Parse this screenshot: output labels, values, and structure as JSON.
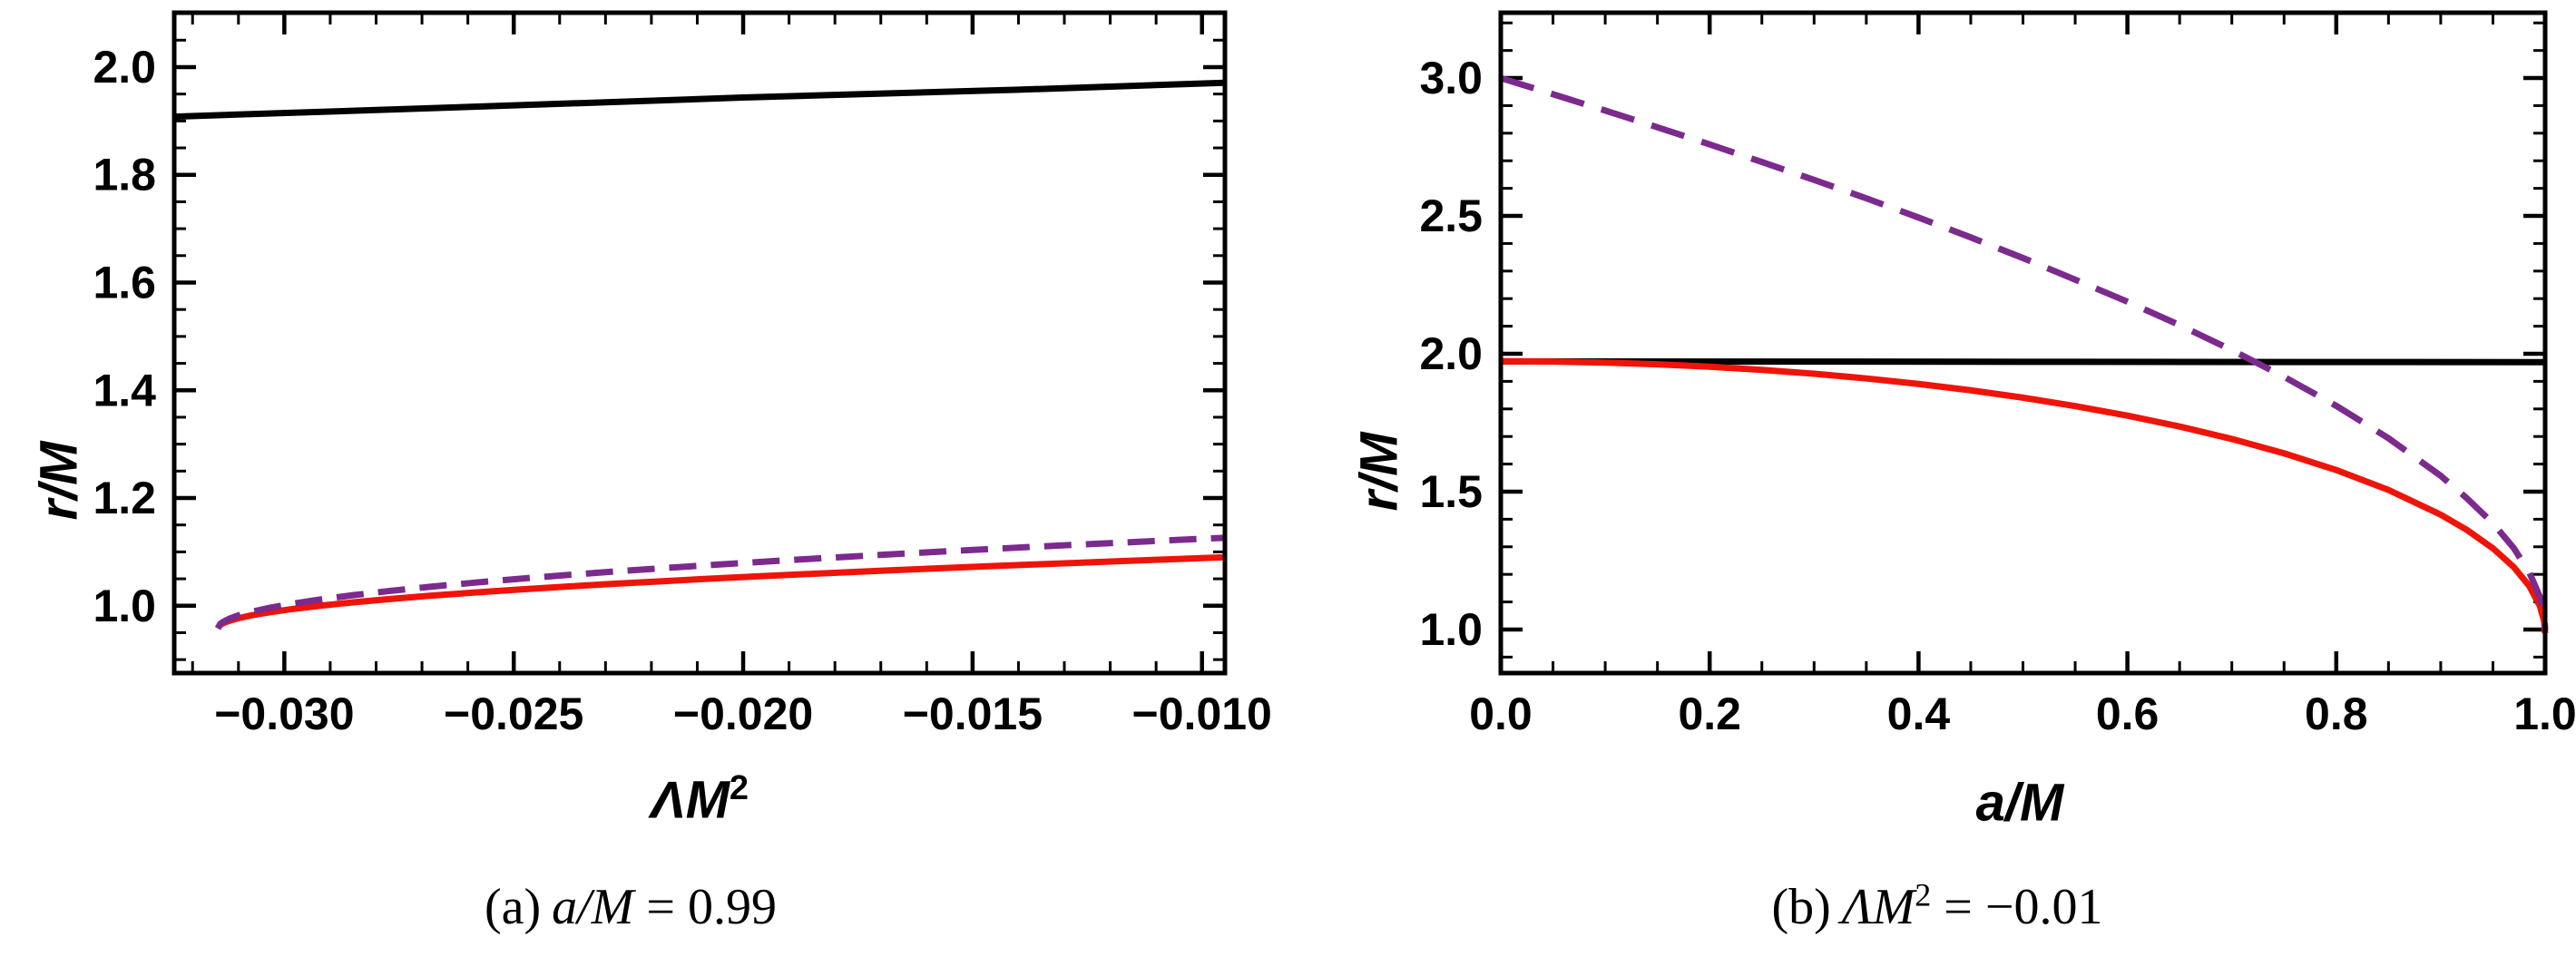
{
  "figure_background": "#ffffff",
  "chart_data": [
    {
      "id": "a",
      "type": "line",
      "title": "",
      "xlabel_main": "ΛM",
      "xlabel_sup": "2",
      "ylabel": "r/M",
      "xlim": [
        -0.0324,
        -0.0095
      ],
      "ylim": [
        0.875,
        2.101
      ],
      "grid": false,
      "legend": "none",
      "frame_color": "#000000",
      "xticks": {
        "values": [
          -0.03,
          -0.025,
          -0.02,
          -0.015,
          -0.01
        ],
        "labels": [
          "−0.030",
          "−0.025",
          "−0.020",
          "−0.015",
          "−0.010"
        ],
        "minor_step": 0.001
      },
      "yticks": {
        "values": [
          1.0,
          1.2,
          1.4,
          1.6,
          1.8,
          2.0
        ],
        "labels": [
          "1.0",
          "1.2",
          "1.4",
          "1.6",
          "1.8",
          "2.0"
        ],
        "minor_step": 0.05
      },
      "series": [
        {
          "name": "black-solid-line",
          "color": "#000000",
          "width": 7,
          "dash": null,
          "points": [
            [
              -0.0324,
              1.908
            ],
            [
              -0.026,
              1.926
            ],
            [
              -0.02,
              1.9435
            ],
            [
              -0.014,
              1.958
            ],
            [
              -0.0095,
              1.971
            ]
          ]
        },
        {
          "name": "red-solid-curve",
          "color": "#EF1409",
          "width": 7,
          "dash": null,
          "points": [
            [
              -0.03145,
              0.958
            ],
            [
              -0.0314,
              0.9643
            ],
            [
              -0.03135,
              0.9669
            ],
            [
              -0.0312,
              0.9721
            ],
            [
              -0.031,
              0.9769
            ],
            [
              -0.0307,
              0.9824
            ],
            [
              -0.0303,
              0.9882
            ],
            [
              -0.0298,
              0.9942
            ],
            [
              -0.0292,
              1.0002
            ],
            [
              -0.0285,
              1.0063
            ],
            [
              -0.0277,
              1.0125
            ],
            [
              -0.0268,
              1.0187
            ],
            [
              -0.0258,
              1.0249
            ],
            [
              -0.0248,
              1.0306
            ],
            [
              -0.0238,
              1.0358
            ],
            [
              -0.0228,
              1.0408
            ],
            [
              -0.0218,
              1.0454
            ],
            [
              -0.0208,
              1.0499
            ],
            [
              -0.0198,
              1.0541
            ],
            [
              -0.0188,
              1.0581
            ],
            [
              -0.0178,
              1.062
            ],
            [
              -0.0168,
              1.0657
            ],
            [
              -0.0158,
              1.0693
            ],
            [
              -0.0148,
              1.0728
            ],
            [
              -0.0138,
              1.0762
            ],
            [
              -0.0128,
              1.0795
            ],
            [
              -0.0118,
              1.0828
            ],
            [
              -0.0108,
              1.0859
            ],
            [
              -0.0098,
              1.089
            ],
            [
              -0.0095,
              1.0899
            ]
          ]
        },
        {
          "name": "purple-dashed-curve",
          "color": "#7C2A8E",
          "width": 7,
          "dash": [
            30,
            16
          ],
          "points": [
            [
              -0.03145,
              0.958
            ],
            [
              -0.0314,
              0.966
            ],
            [
              -0.03135,
              0.9694
            ],
            [
              -0.0312,
              0.9759
            ],
            [
              -0.031,
              0.9821
            ],
            [
              -0.0307,
              0.9891
            ],
            [
              -0.0303,
              0.9965
            ],
            [
              -0.0298,
              1.0041
            ],
            [
              -0.0292,
              1.0118
            ],
            [
              -0.0285,
              1.0196
            ],
            [
              -0.0277,
              1.0275
            ],
            [
              -0.0268,
              1.0354
            ],
            [
              -0.0258,
              1.0433
            ],
            [
              -0.0248,
              1.0506
            ],
            [
              -0.0238,
              1.0573
            ],
            [
              -0.0228,
              1.0636
            ],
            [
              -0.0218,
              1.0695
            ],
            [
              -0.0208,
              1.0751
            ],
            [
              -0.0198,
              1.0805
            ],
            [
              -0.0188,
              1.0857
            ],
            [
              -0.0178,
              1.0906
            ],
            [
              -0.0168,
              1.0954
            ],
            [
              -0.0158,
              1.1
            ],
            [
              -0.0148,
              1.1045
            ],
            [
              -0.0138,
              1.1088
            ],
            [
              -0.0128,
              1.113
            ],
            [
              -0.0118,
              1.1171
            ],
            [
              -0.0108,
              1.1211
            ],
            [
              -0.0098,
              1.125
            ],
            [
              -0.0095,
              1.1262
            ]
          ]
        }
      ],
      "caption": {
        "prefix": "(a)",
        "var": "a/M",
        "var_sup": "",
        "eq": "=",
        "rhs": "0.99"
      }
    },
    {
      "id": "b",
      "type": "line",
      "title": "",
      "xlabel_main": "a/M",
      "xlabel_sup": "",
      "ylabel": "r/M",
      "xlim": [
        0.0,
        1.0
      ],
      "ylim": [
        0.842,
        3.237
      ],
      "grid": false,
      "legend": "none",
      "frame_color": "#000000",
      "xticks": {
        "values": [
          0.0,
          0.2,
          0.4,
          0.6,
          0.8,
          1.0
        ],
        "labels": [
          "0.0",
          "0.2",
          "0.4",
          "0.6",
          "0.8",
          "1.0"
        ],
        "minor_step": 0.05
      },
      "yticks": {
        "values": [
          1.0,
          1.5,
          2.0,
          2.5,
          3.0
        ],
        "labels": [
          "1.0",
          "1.5",
          "2.0",
          "2.5",
          "3.0"
        ],
        "minor_step": 0.1
      },
      "series": [
        {
          "name": "black-solid-line",
          "color": "#000000",
          "width": 7,
          "dash": null,
          "points": [
            [
              0,
              1.9725
            ],
            [
              0.5,
              1.971
            ],
            [
              1.0,
              1.9695
            ]
          ]
        },
        {
          "name": "red-solid-curve",
          "color": "#EF1409",
          "width": 7,
          "dash": null,
          "points": [
            [
              0,
              1.973
            ],
            [
              0.05,
              1.9718
            ],
            [
              0.1,
              1.9681
            ],
            [
              0.15,
              1.9619
            ],
            [
              0.2,
              1.9531
            ],
            [
              0.25,
              1.9417
            ],
            [
              0.3,
              1.9276
            ],
            [
              0.35,
              1.9106
            ],
            [
              0.4,
              1.8907
            ],
            [
              0.45,
              1.8675
            ],
            [
              0.5,
              1.8408
            ],
            [
              0.55,
              1.8104
            ],
            [
              0.6,
              1.7757
            ],
            [
              0.65,
              1.7362
            ],
            [
              0.7,
              1.691
            ],
            [
              0.75,
              1.639
            ],
            [
              0.8,
              1.5784
            ],
            [
              0.85,
              1.5062
            ],
            [
              0.9,
              1.4165
            ],
            [
              0.925,
              1.3614
            ],
            [
              0.95,
              1.2945
            ],
            [
              0.97,
              1.2263
            ],
            [
              0.985,
              1.1567
            ],
            [
              0.995,
              1.085
            ],
            [
              0.999,
              1.0306
            ],
            [
              1.0,
              0.9865
            ]
          ]
        },
        {
          "name": "purple-dashed-curve",
          "color": "#7C2A8E",
          "width": 7,
          "dash": [
            38,
            20
          ],
          "points": [
            [
              0,
              3.0
            ],
            [
              0.05,
              2.9414
            ],
            [
              0.1,
              2.8821
            ],
            [
              0.15,
              2.8215
            ],
            [
              0.2,
              2.7593
            ],
            [
              0.25,
              2.6956
            ],
            [
              0.3,
              2.6306
            ],
            [
              0.35,
              2.5638
            ],
            [
              0.4,
              2.4942
            ],
            [
              0.45,
              2.4221
            ],
            [
              0.5,
              2.3473
            ],
            [
              0.55,
              2.2688
            ],
            [
              0.6,
              2.189
            ],
            [
              0.65,
              2.104
            ],
            [
              0.7,
              2.0133
            ],
            [
              0.75,
              1.9165
            ],
            [
              0.8,
              1.8112
            ],
            [
              0.85,
              1.6937
            ],
            [
              0.9,
              1.5575
            ],
            [
              0.925,
              1.4762
            ],
            [
              0.95,
              1.3854
            ],
            [
              0.97,
              1.295
            ],
            [
              0.985,
              1.2057
            ],
            [
              0.995,
              1.118
            ],
            [
              0.999,
              1.0534
            ],
            [
              1.0,
              1.0
            ]
          ]
        }
      ],
      "caption": {
        "prefix": "(b)",
        "var": "ΛM",
        "var_sup": "2",
        "eq": "=",
        "rhs": "−0.01"
      }
    }
  ]
}
